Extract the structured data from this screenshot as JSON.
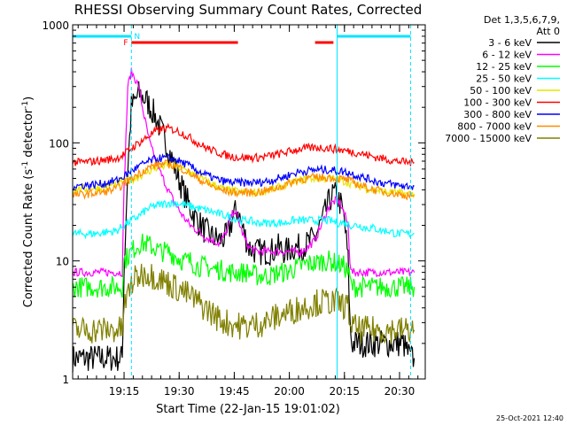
{
  "chart_data": {
    "type": "line",
    "title": "RHESSI Observing Summary Count Rates, Corrected",
    "xlabel": "Start Time (22-Jan-15 19:01:02)",
    "ylabel_main": "Corrected Count Rate (s",
    "ylabel_sup1": "-1",
    "ylabel_mid": " detector",
    "ylabel_sup2": "-1",
    "ylabel_end": ")",
    "yscale": "log",
    "ylim": [
      1,
      1000
    ],
    "xlim_minutes": [
      0,
      96
    ],
    "x_ticks": [
      {
        "label": "19:15",
        "minute": 14
      },
      {
        "label": "19:30",
        "minute": 29
      },
      {
        "label": "19:45",
        "minute": 44
      },
      {
        "label": "20:00",
        "minute": 59
      },
      {
        "label": "20:15",
        "minute": 74
      },
      {
        "label": "20:30",
        "minute": 89
      }
    ],
    "y_ticks": [
      {
        "label": "1",
        "value": 1
      },
      {
        "label": "10",
        "value": 10
      },
      {
        "label": "100",
        "value": 100
      },
      {
        "label": "1000",
        "value": 1000
      }
    ],
    "legend_header": [
      "Det 1,3,5,6,7,9,",
      "Att 0"
    ],
    "legend_position": "right",
    "series": [
      {
        "name": "3 - 6 keV",
        "color": "#000000",
        "x": [
          0,
          13.5,
          14,
          15,
          16,
          18,
          20,
          22,
          24,
          26,
          28,
          30,
          32,
          34,
          36,
          38,
          40,
          42,
          44,
          45,
          46,
          48,
          50,
          52,
          54,
          56,
          58,
          60,
          62,
          64,
          66,
          68,
          70,
          71,
          72,
          73,
          74,
          75,
          75.5,
          76,
          78,
          80,
          82,
          84,
          86,
          88,
          90,
          92,
          93
        ],
        "y": [
          1.5,
          1.5,
          8,
          60,
          200,
          260,
          230,
          180,
          130,
          90,
          60,
          40,
          28,
          22,
          18,
          16,
          15,
          16,
          25,
          27,
          20,
          13,
          12,
          12,
          12,
          13,
          12,
          13,
          13,
          14,
          16,
          22,
          33,
          37,
          35,
          30,
          22,
          10,
          3,
          2,
          2,
          2,
          2,
          2,
          2,
          2,
          2,
          1.5,
          1.5
        ]
      },
      {
        "name": "6 - 12 keV",
        "color": "#ff00ff",
        "x": [
          0,
          13.5,
          14,
          15,
          16,
          17,
          18,
          19,
          20,
          21,
          22,
          24,
          26,
          28,
          30,
          32,
          34,
          36,
          38,
          40,
          42,
          43,
          44,
          45,
          46,
          47,
          48,
          50,
          52,
          54,
          56,
          58,
          60,
          62,
          64,
          66,
          68,
          70,
          72,
          73,
          74,
          75,
          75.5,
          76,
          78,
          80,
          82,
          84,
          86,
          88,
          90,
          92,
          93
        ],
        "y": [
          8,
          8,
          40,
          300,
          400,
          350,
          300,
          200,
          140,
          100,
          80,
          55,
          40,
          30,
          24,
          20,
          18,
          16,
          15,
          14,
          18,
          23,
          27,
          23,
          18,
          15,
          13,
          12,
          12,
          12,
          12,
          12,
          12,
          12,
          13,
          15,
          21,
          30,
          33,
          30,
          25,
          20,
          10,
          8,
          8,
          8,
          8,
          8,
          8,
          8,
          8,
          8,
          8
        ]
      },
      {
        "name": "12 - 25 keV",
        "color": "#00ff00",
        "x": [
          0,
          13.5,
          14,
          16,
          18,
          20,
          22,
          24,
          26,
          28,
          30,
          32,
          34,
          36,
          38,
          40,
          42,
          44,
          46,
          48,
          50,
          52,
          54,
          56,
          58,
          60,
          62,
          64,
          66,
          68,
          70,
          72,
          74,
          75,
          75.5,
          76,
          78,
          80,
          82,
          84,
          86,
          88,
          90,
          92,
          93
        ],
        "y": [
          6,
          6,
          10,
          12,
          14,
          14,
          13,
          12,
          12,
          11,
          10,
          10,
          9,
          9,
          8.5,
          8.5,
          8,
          8,
          8,
          8,
          7.5,
          7.5,
          7.5,
          8,
          8,
          8.5,
          9,
          9.5,
          9.5,
          10,
          10,
          9.5,
          9,
          8,
          7,
          6,
          6,
          6,
          6,
          6,
          6,
          6,
          6,
          6,
          6
        ]
      },
      {
        "name": "25 - 50 keV",
        "color": "#00ffff",
        "x": [
          0,
          6,
          12,
          14,
          16,
          18,
          20,
          22,
          24,
          26,
          28,
          30,
          32,
          34,
          36,
          38,
          40,
          42,
          44,
          46,
          48,
          50,
          52,
          54,
          56,
          58,
          60,
          62,
          64,
          66,
          68,
          70,
          72,
          74,
          76,
          78,
          80,
          82,
          84,
          86,
          88,
          90,
          92,
          93
        ],
        "y": [
          17,
          17,
          18,
          20,
          22,
          24,
          27,
          29,
          30,
          31,
          31,
          30,
          29,
          28,
          27,
          26,
          25,
          24,
          23,
          22,
          22,
          21,
          21,
          21,
          21,
          21,
          22,
          22,
          22,
          22,
          22,
          22,
          21,
          21,
          20,
          20,
          19,
          19,
          18,
          18,
          17,
          17,
          17,
          17
        ]
      },
      {
        "name": "50 - 100 keV",
        "color": "#e6e600",
        "x": [
          0,
          4,
          8,
          12,
          14,
          16,
          18,
          20,
          22,
          24,
          26,
          28,
          30,
          32,
          34,
          36,
          38,
          40,
          42,
          44,
          46,
          48,
          50,
          52,
          54,
          56,
          58,
          60,
          62,
          64,
          66,
          68,
          70,
          72,
          74,
          76,
          78,
          80,
          82,
          84,
          86,
          88,
          90,
          92,
          93
        ],
        "y": [
          40,
          41,
          42,
          45,
          47,
          49,
          52,
          56,
          60,
          63,
          64,
          63,
          60,
          56,
          52,
          48,
          45,
          42,
          40,
          39,
          38,
          38,
          38,
          39,
          40,
          42,
          44,
          46,
          48,
          50,
          50,
          50,
          50,
          49,
          47,
          45,
          43,
          41,
          40,
          39,
          38,
          38,
          37,
          37,
          37
        ]
      },
      {
        "name": "100 - 300 keV",
        "color": "#ff0000",
        "x": [
          0,
          4,
          8,
          12,
          14,
          16,
          18,
          20,
          22,
          24,
          26,
          28,
          30,
          32,
          34,
          36,
          38,
          40,
          42,
          44,
          46,
          48,
          50,
          52,
          54,
          56,
          58,
          60,
          62,
          64,
          66,
          68,
          70,
          72,
          74,
          76,
          78,
          80,
          82,
          84,
          86,
          88,
          90,
          92,
          93
        ],
        "y": [
          68,
          69,
          71,
          74,
          80,
          90,
          100,
          110,
          122,
          130,
          132,
          128,
          120,
          110,
          100,
          92,
          86,
          82,
          78,
          76,
          75,
          75,
          75,
          76,
          78,
          80,
          83,
          86,
          89,
          90,
          91,
          91,
          90,
          88,
          86,
          84,
          82,
          79,
          76,
          74,
          72,
          70,
          69,
          68,
          68
        ]
      },
      {
        "name": "300 - 800 keV",
        "color": "#0000ff",
        "x": [
          0,
          4,
          8,
          12,
          14,
          16,
          18,
          20,
          22,
          24,
          26,
          28,
          30,
          32,
          34,
          36,
          38,
          40,
          42,
          44,
          46,
          48,
          50,
          52,
          54,
          56,
          58,
          60,
          62,
          64,
          66,
          68,
          70,
          72,
          74,
          76,
          78,
          80,
          82,
          84,
          86,
          88,
          90,
          92,
          93
        ],
        "y": [
          43,
          44,
          45,
          48,
          52,
          58,
          63,
          68,
          72,
          74,
          74,
          72,
          68,
          63,
          58,
          54,
          51,
          48,
          47,
          46,
          46,
          46,
          46,
          47,
          48,
          50,
          52,
          55,
          57,
          58,
          59,
          59,
          59,
          58,
          57,
          55,
          52,
          50,
          48,
          46,
          45,
          44,
          43,
          43,
          43
        ]
      },
      {
        "name": "800 - 7000 keV",
        "color": "#ff8c00",
        "x": [
          0,
          4,
          8,
          12,
          14,
          16,
          18,
          20,
          22,
          24,
          26,
          28,
          30,
          32,
          34,
          36,
          38,
          40,
          42,
          44,
          46,
          48,
          50,
          52,
          54,
          56,
          58,
          60,
          62,
          64,
          66,
          68,
          70,
          72,
          74,
          76,
          78,
          80,
          82,
          84,
          86,
          88,
          90,
          92,
          93
        ],
        "y": [
          36,
          37,
          38,
          41,
          45,
          50,
          55,
          60,
          64,
          66,
          66,
          64,
          60,
          55,
          50,
          46,
          43,
          40,
          39,
          38,
          38,
          38,
          38,
          39,
          40,
          42,
          44,
          47,
          49,
          50,
          51,
          51,
          51,
          50,
          49,
          47,
          44,
          42,
          40,
          39,
          38,
          37,
          36,
          36,
          36
        ]
      },
      {
        "name": "7000 - 15000 keV",
        "color": "#808000",
        "x": [
          0,
          13.5,
          14,
          16,
          18,
          20,
          22,
          24,
          26,
          28,
          30,
          32,
          34,
          36,
          38,
          40,
          42,
          44,
          46,
          48,
          50,
          52,
          54,
          56,
          58,
          60,
          62,
          64,
          66,
          68,
          70,
          72,
          74,
          75,
          75.5,
          76,
          78,
          80,
          82,
          84,
          86,
          88,
          90,
          92,
          93
        ],
        "y": [
          2.6,
          2.6,
          4,
          6.5,
          7.5,
          8,
          7.5,
          7,
          6.5,
          6,
          5.5,
          5,
          4.5,
          4,
          3.6,
          3.2,
          3,
          2.9,
          2.8,
          2.8,
          2.9,
          3,
          3.2,
          3.4,
          3.6,
          3.8,
          4,
          4.2,
          4.4,
          4.5,
          4.5,
          4.4,
          4.2,
          4,
          3.2,
          2.8,
          2.6,
          2.6,
          2.6,
          2.6,
          2.6,
          2.6,
          2.6,
          2.6,
          2.6
        ]
      }
    ],
    "annotations": {
      "night_label": "N",
      "flare_label": "F",
      "date_stamp": "25-Oct-2021 12:40",
      "night_bars_minutes": [
        [
          0,
          16
        ],
        [
          72,
          92
        ]
      ],
      "flare_bars_minutes": [
        [
          16,
          45
        ],
        [
          66,
          71
        ]
      ],
      "dashed_lines_minutes": [
        16,
        92
      ],
      "solid_lines_minutes": [
        72
      ]
    },
    "colors": {
      "night": "#00e5ff",
      "flare": "#ff0000",
      "dashed": "#00e5ff"
    }
  }
}
